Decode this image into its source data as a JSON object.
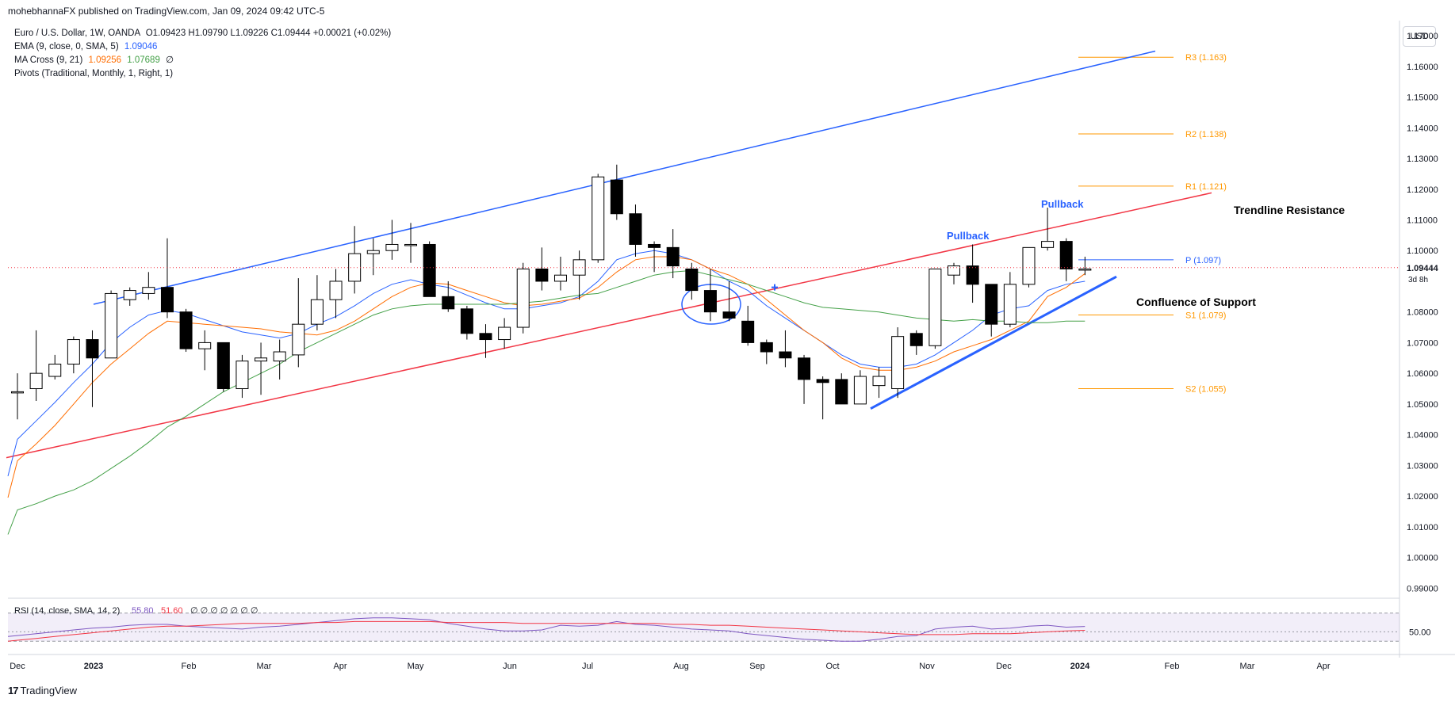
{
  "header": {
    "published": "mohebhannaFX published on TradingView.com, Jan 09, 2024 09:42 UTC-5"
  },
  "legend": {
    "symbol": "Euro / U.S. Dollar, 1W, OANDA",
    "ohlc": "O1.09423 H1.09790 L1.09226 C1.09444 +0.00021 (+0.02%)",
    "ema_label": "EMA (9, close, 0, SMA, 5)",
    "ema_value": "1.09046",
    "macross_label": "MA Cross (9, 21)",
    "macross_fast": "1.09256",
    "macross_slow": "1.07689",
    "macross_extra": "∅",
    "pivots_label": "Pivots (Traditional, Monthly, 1, Right, 1)"
  },
  "currency_button": "USD",
  "footer_logo": "TradingView",
  "footer_logo_mark": "17",
  "colors": {
    "up_candle": "#ffffff",
    "down_candle": "#000000",
    "ema": "#2962ff",
    "ma_fast": "#ff6d00",
    "ma_slow": "#43a047",
    "channel": "#2962ff",
    "trendline": "#f23645",
    "pivot": "#ff9800",
    "rsi": "#7e57c2",
    "rsi_ma": "#f23645"
  },
  "chart_data": {
    "type": "candlestick",
    "ylim": [
      0.988,
      1.177
    ],
    "y_ticks": [
      "1.17000",
      "1.16000",
      "1.15000",
      "1.14000",
      "1.13000",
      "1.12000",
      "1.11000",
      "1.10000",
      "1.08000",
      "1.07000",
      "1.06000",
      "1.05000",
      "1.04000",
      "1.03000",
      "1.02000",
      "1.01000",
      "1.00000",
      "0.99000"
    ],
    "x_ticks": [
      "Dec",
      "2023",
      "Feb",
      "Mar",
      "Apr",
      "May",
      "Jun",
      "Jul",
      "Aug",
      "Sep",
      "Oct",
      "Nov",
      "Dec",
      "2024",
      "Feb",
      "Mar",
      "Apr"
    ],
    "last_price": "1.09444",
    "countdown": "3d 8h",
    "candles": [
      {
        "o": 1.054,
        "h": 1.06,
        "l": 1.045,
        "c": 1.054
      },
      {
        "o": 1.055,
        "h": 1.074,
        "l": 1.051,
        "c": 1.06
      },
      {
        "o": 1.059,
        "h": 1.066,
        "l": 1.058,
        "c": 1.063
      },
      {
        "o": 1.063,
        "h": 1.072,
        "l": 1.06,
        "c": 1.071
      },
      {
        "o": 1.071,
        "h": 1.074,
        "l": 1.049,
        "c": 1.065
      },
      {
        "o": 1.065,
        "h": 1.087,
        "l": 1.065,
        "c": 1.086
      },
      {
        "o": 1.084,
        "h": 1.088,
        "l": 1.082,
        "c": 1.087
      },
      {
        "o": 1.086,
        "h": 1.093,
        "l": 1.084,
        "c": 1.088
      },
      {
        "o": 1.088,
        "h": 1.104,
        "l": 1.078,
        "c": 1.08
      },
      {
        "o": 1.08,
        "h": 1.081,
        "l": 1.067,
        "c": 1.068
      },
      {
        "o": 1.068,
        "h": 1.074,
        "l": 1.061,
        "c": 1.07
      },
      {
        "o": 1.07,
        "h": 1.07,
        "l": 1.054,
        "c": 1.055
      },
      {
        "o": 1.055,
        "h": 1.066,
        "l": 1.052,
        "c": 1.064
      },
      {
        "o": 1.064,
        "h": 1.07,
        "l": 1.053,
        "c": 1.065
      },
      {
        "o": 1.064,
        "h": 1.071,
        "l": 1.058,
        "c": 1.067
      },
      {
        "o": 1.066,
        "h": 1.091,
        "l": 1.062,
        "c": 1.076
      },
      {
        "o": 1.076,
        "h": 1.092,
        "l": 1.074,
        "c": 1.084
      },
      {
        "o": 1.084,
        "h": 1.094,
        "l": 1.078,
        "c": 1.09
      },
      {
        "o": 1.09,
        "h": 1.108,
        "l": 1.086,
        "c": 1.099
      },
      {
        "o": 1.099,
        "h": 1.104,
        "l": 1.092,
        "c": 1.1
      },
      {
        "o": 1.1,
        "h": 1.11,
        "l": 1.097,
        "c": 1.102
      },
      {
        "o": 1.102,
        "h": 1.109,
        "l": 1.096,
        "c": 1.102
      },
      {
        "o": 1.102,
        "h": 1.103,
        "l": 1.085,
        "c": 1.085
      },
      {
        "o": 1.085,
        "h": 1.09,
        "l": 1.08,
        "c": 1.081
      },
      {
        "o": 1.081,
        "h": 1.082,
        "l": 1.071,
        "c": 1.073
      },
      {
        "o": 1.073,
        "h": 1.076,
        "l": 1.065,
        "c": 1.071
      },
      {
        "o": 1.071,
        "h": 1.078,
        "l": 1.068,
        "c": 1.075
      },
      {
        "o": 1.075,
        "h": 1.096,
        "l": 1.073,
        "c": 1.094
      },
      {
        "o": 1.094,
        "h": 1.101,
        "l": 1.087,
        "c": 1.09
      },
      {
        "o": 1.09,
        "h": 1.098,
        "l": 1.087,
        "c": 1.092
      },
      {
        "o": 1.092,
        "h": 1.1,
        "l": 1.084,
        "c": 1.097
      },
      {
        "o": 1.097,
        "h": 1.125,
        "l": 1.096,
        "c": 1.124
      },
      {
        "o": 1.123,
        "h": 1.128,
        "l": 1.11,
        "c": 1.112
      },
      {
        "o": 1.112,
        "h": 1.115,
        "l": 1.098,
        "c": 1.102
      },
      {
        "o": 1.102,
        "h": 1.103,
        "l": 1.093,
        "c": 1.101
      },
      {
        "o": 1.101,
        "h": 1.107,
        "l": 1.091,
        "c": 1.095
      },
      {
        "o": 1.094,
        "h": 1.096,
        "l": 1.084,
        "c": 1.087
      },
      {
        "o": 1.087,
        "h": 1.094,
        "l": 1.077,
        "c": 1.08
      },
      {
        "o": 1.08,
        "h": 1.09,
        "l": 1.077,
        "c": 1.078
      },
      {
        "o": 1.077,
        "h": 1.082,
        "l": 1.069,
        "c": 1.07
      },
      {
        "o": 1.07,
        "h": 1.071,
        "l": 1.063,
        "c": 1.067
      },
      {
        "o": 1.067,
        "h": 1.074,
        "l": 1.062,
        "c": 1.065
      },
      {
        "o": 1.065,
        "h": 1.066,
        "l": 1.05,
        "c": 1.058
      },
      {
        "o": 1.058,
        "h": 1.059,
        "l": 1.045,
        "c": 1.057
      },
      {
        "o": 1.058,
        "h": 1.06,
        "l": 1.05,
        "c": 1.05
      },
      {
        "o": 1.05,
        "h": 1.061,
        "l": 1.05,
        "c": 1.059
      },
      {
        "o": 1.056,
        "h": 1.062,
        "l": 1.052,
        "c": 1.059
      },
      {
        "o": 1.055,
        "h": 1.075,
        "l": 1.052,
        "c": 1.072
      },
      {
        "o": 1.073,
        "h": 1.074,
        "l": 1.066,
        "c": 1.069
      },
      {
        "o": 1.069,
        "h": 1.094,
        "l": 1.068,
        "c": 1.094
      },
      {
        "o": 1.092,
        "h": 1.096,
        "l": 1.089,
        "c": 1.095
      },
      {
        "o": 1.095,
        "h": 1.102,
        "l": 1.083,
        "c": 1.089
      },
      {
        "o": 1.089,
        "h": 1.089,
        "l": 1.072,
        "c": 1.076
      },
      {
        "o": 1.076,
        "h": 1.093,
        "l": 1.075,
        "c": 1.089
      },
      {
        "o": 1.089,
        "h": 1.101,
        "l": 1.088,
        "c": 1.101
      },
      {
        "o": 1.101,
        "h": 1.114,
        "l": 1.1,
        "c": 1.103
      },
      {
        "o": 1.103,
        "h": 1.104,
        "l": 1.09,
        "c": 1.094
      },
      {
        "o": 1.094,
        "h": 1.098,
        "l": 1.092,
        "c": 1.094
      }
    ],
    "series": [
      {
        "name": "EMA (9, close, 0, SMA, 5)",
        "values": [
          1.0385,
          1.0445,
          1.0505,
          1.057,
          1.063,
          1.07,
          1.075,
          1.079,
          1.0805,
          1.0795,
          1.0775,
          1.0755,
          1.0735,
          1.0725,
          1.0715,
          1.073,
          1.076,
          1.0785,
          1.082,
          1.086,
          1.089,
          1.0905,
          1.089,
          1.088,
          1.0855,
          1.083,
          1.081,
          1.081,
          1.082,
          1.083,
          1.085,
          1.09,
          1.097,
          1.099,
          1.1,
          1.099,
          1.097,
          1.094,
          1.09,
          1.087,
          1.082,
          1.078,
          1.074,
          1.07,
          1.066,
          1.063,
          1.062,
          1.062,
          1.063,
          1.066,
          1.07,
          1.074,
          1.079,
          1.081,
          1.082,
          1.087,
          1.089,
          1.09
        ]
      },
      {
        "name": "MA Cross fast",
        "values": [
          1.0315,
          1.037,
          1.043,
          1.05,
          1.057,
          1.063,
          1.068,
          1.073,
          1.077,
          1.0765,
          1.076,
          1.0755,
          1.075,
          1.0745,
          1.0735,
          1.073,
          1.0725,
          1.074,
          1.077,
          1.081,
          1.085,
          1.088,
          1.0895,
          1.089,
          1.087,
          1.085,
          1.083,
          1.082,
          1.0825,
          1.0835,
          1.0845,
          1.088,
          1.093,
          1.097,
          1.098,
          1.098,
          1.097,
          1.094,
          1.092,
          1.089,
          1.084,
          1.079,
          1.074,
          1.07,
          1.065,
          1.062,
          1.061,
          1.061,
          1.062,
          1.064,
          1.067,
          1.069,
          1.071,
          1.074,
          1.077,
          1.085,
          1.088,
          1.0925
        ]
      },
      {
        "name": "MA Cross slow",
        "values": [
          1.0155,
          1.0175,
          1.02,
          1.022,
          1.025,
          1.029,
          1.033,
          1.0375,
          1.0425,
          1.046,
          1.05,
          1.054,
          1.057,
          1.06,
          1.063,
          1.067,
          1.07,
          1.073,
          1.076,
          1.079,
          1.081,
          1.082,
          1.0825,
          1.0825,
          1.0825,
          1.0825,
          1.0825,
          1.083,
          1.0835,
          1.0845,
          1.0855,
          1.086,
          1.088,
          1.09,
          1.092,
          1.093,
          1.0935,
          1.092,
          1.0905,
          1.089,
          1.087,
          1.085,
          1.083,
          1.0815,
          1.081,
          1.0805,
          1.08,
          1.079,
          1.078,
          1.0775,
          1.077,
          1.0775,
          1.077,
          1.077,
          1.0765,
          1.0765,
          1.077,
          1.077
        ]
      }
    ],
    "pivots": [
      {
        "label": "R3 (1.163)",
        "value": 1.163
      },
      {
        "label": "R2 (1.138)",
        "value": 1.138
      },
      {
        "label": "R1 (1.121)",
        "value": 1.121
      },
      {
        "label": "P (1.097)",
        "value": 1.097
      },
      {
        "label": "S1 (1.079)",
        "value": 1.079
      },
      {
        "label": "S2 (1.055)",
        "value": 1.055
      }
    ],
    "annotations": {
      "pullback_1": "Pullback",
      "pullback_2": "Pullback",
      "trendline_resistance": "Trendline Resistance",
      "confluence_support": "Confluence of Support"
    },
    "rsi": {
      "label": "RSI (14, close, SMA, 14, 2)",
      "value": "55.80",
      "ma_value": "51.60",
      "extra": "∅ ∅ ∅ ∅ ∅ ∅ ∅",
      "level": "50.00",
      "ylim": [
        30,
        80
      ],
      "upper_band": 70,
      "lower_band": 30,
      "values": [
        46,
        48,
        50,
        52,
        54,
        55,
        57,
        58,
        58,
        56,
        55,
        54,
        53,
        55,
        56,
        58,
        60,
        62,
        64,
        65,
        65,
        64,
        63,
        59,
        56,
        53,
        51,
        51,
        52,
        57,
        56,
        57,
        61,
        58,
        57,
        55,
        53,
        52,
        51,
        48,
        46,
        44,
        42,
        41,
        40,
        40,
        42,
        45,
        46,
        53,
        55,
        56,
        53,
        54,
        56,
        57,
        55,
        55.8
      ],
      "ma_values": [
        41,
        43,
        45,
        47,
        49,
        51,
        53,
        55,
        56,
        56,
        57,
        58,
        59,
        59,
        59,
        59,
        60,
        60,
        61,
        61,
        61,
        61,
        61,
        60,
        60,
        60,
        60,
        59,
        59,
        59,
        59,
        59,
        59,
        59,
        59,
        58,
        58,
        57,
        57,
        56,
        55,
        54,
        53,
        52,
        51,
        50,
        49,
        48,
        47,
        47,
        47,
        48,
        48,
        48,
        49,
        50,
        51,
        51.6
      ]
    }
  }
}
